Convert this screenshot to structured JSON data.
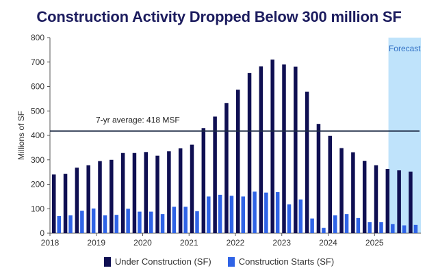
{
  "chart_data": {
    "type": "bar",
    "title": "Construction Activity Dropped Below 300 million SF",
    "xlabel": "",
    "ylabel": "Millions of SF",
    "ylim": [
      0,
      800
    ],
    "yticks": [
      "0",
      "100",
      "200",
      "300",
      "400",
      "500",
      "600",
      "700",
      "800"
    ],
    "xlim": [
      2018,
      2026
    ],
    "xticks": [
      "2018",
      "2019",
      "2020",
      "2021",
      "2022",
      "2023",
      "2024",
      "2025"
    ],
    "categories": [
      "2018 Q1",
      "2018 Q2",
      "2018 Q3",
      "2018 Q4",
      "2019 Q1",
      "2019 Q2",
      "2019 Q3",
      "2019 Q4",
      "2020 Q1",
      "2020 Q2",
      "2020 Q3",
      "2020 Q4",
      "2021 Q1",
      "2021 Q2",
      "2021 Q3",
      "2021 Q4",
      "2022 Q1",
      "2022 Q2",
      "2022 Q3",
      "2022 Q4",
      "2023 Q1",
      "2023 Q2",
      "2023 Q3",
      "2023 Q4",
      "2024 Q1",
      "2024 Q2",
      "2024 Q3",
      "2024 Q4",
      "2025 Q1",
      "2025 Q2",
      "2025 Q3",
      "2025 Q4"
    ],
    "series": [
      {
        "name": "Under Construction (SF)",
        "color": "#0f0f52",
        "values": [
          240,
          243,
          268,
          278,
          295,
          300,
          328,
          328,
          332,
          317,
          335,
          347,
          362,
          430,
          477,
          532,
          587,
          655,
          682,
          710,
          690,
          681,
          579,
          447,
          398,
          348,
          331,
          296,
          278,
          263,
          257,
          252
        ]
      },
      {
        "name": "Construction Starts (SF)",
        "color": "#2f63e6",
        "values": [
          70,
          73,
          92,
          101,
          73,
          75,
          100,
          88,
          88,
          78,
          108,
          108,
          90,
          150,
          157,
          153,
          150,
          170,
          166,
          168,
          118,
          138,
          60,
          22,
          73,
          78,
          62,
          45,
          45,
          37,
          32,
          34
        ]
      }
    ],
    "reference_line": {
      "value": 418,
      "label": "7-yr average: 418 MSF",
      "color": "#1c2a44"
    },
    "forecast": {
      "label": "Forecast",
      "start": 2025.3,
      "end": 2026,
      "color": "#bfe3fb",
      "label_color": "#2f6fc4"
    },
    "legend_position": "bottom",
    "grid": false
  }
}
